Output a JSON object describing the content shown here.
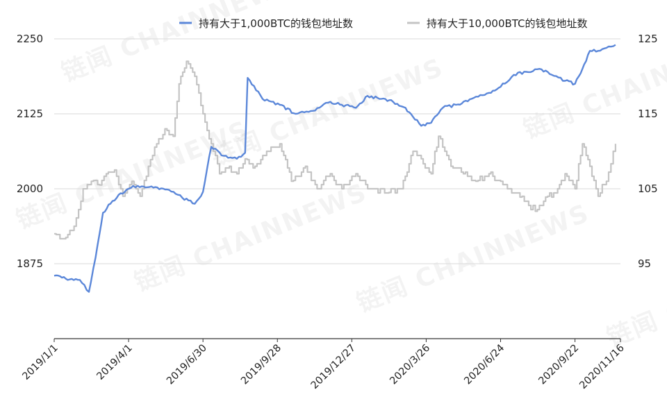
{
  "chart_data": {
    "type": "line",
    "title": "",
    "xlabel": "",
    "ylabel": "",
    "x_ticks": [
      "2019/1/1",
      "2019/4/1",
      "2019/6/30",
      "2019/9/28",
      "2019/12/27",
      "2020/3/26",
      "2020/6/24",
      "2020/9/22",
      "2020/11/16"
    ],
    "y_left": {
      "ticks": [
        1875,
        2000,
        2125,
        2250
      ],
      "ylim": [
        1750,
        2250
      ]
    },
    "y_right": {
      "ticks": [
        95,
        105,
        115,
        125
      ],
      "ylim": [
        85,
        125
      ]
    },
    "grid": true,
    "legend_position": "top",
    "series": [
      {
        "name": "持有大于1,000BTC的钱包地址数",
        "axis": "left",
        "color": "#5b87d9",
        "x": [
          "2019/1/1",
          "2019/1/15",
          "2019/2/1",
          "2019/2/12",
          "2019/2/20",
          "2019/3/1",
          "2019/3/10",
          "2019/3/20",
          "2019/4/1",
          "2019/4/12",
          "2019/5/1",
          "2019/5/20",
          "2019/6/5",
          "2019/6/20",
          "2019/6/30",
          "2019/7/10",
          "2019/7/25",
          "2019/8/10",
          "2019/8/20",
          "2019/8/23",
          "2019/9/10",
          "2019/10/1",
          "2019/10/20",
          "2019/11/10",
          "2019/12/1",
          "2019/12/15",
          "2020/1/1",
          "2020/1/15",
          "2020/2/1",
          "2020/2/15",
          "2020/3/1",
          "2020/3/10",
          "2020/3/20",
          "2020/4/1",
          "2020/4/15",
          "2020/5/1",
          "2020/5/20",
          "2020/6/10",
          "2020/6/24",
          "2020/7/10",
          "2020/7/25",
          "2020/8/10",
          "2020/8/25",
          "2020/9/10",
          "2020/9/22",
          "2020/10/1",
          "2020/10/10",
          "2020/10/20",
          "2020/10/30",
          "2020/11/10"
        ],
        "values": [
          1855,
          1850,
          1848,
          1828,
          1885,
          1960,
          1975,
          1990,
          2000,
          2005,
          2002,
          1998,
          1985,
          1975,
          1995,
          2070,
          2055,
          2050,
          2060,
          2185,
          2150,
          2140,
          2125,
          2130,
          2145,
          2140,
          2135,
          2155,
          2150,
          2145,
          2135,
          2120,
          2105,
          2110,
          2135,
          2140,
          2150,
          2160,
          2170,
          2190,
          2195,
          2200,
          2190,
          2180,
          2175,
          2200,
          2230,
          2230,
          2235,
          2240
        ]
      },
      {
        "name": "持有大于10,000BTC的钱包地址数",
        "axis": "right",
        "color": "#c4c4c4",
        "x": [
          "2019/1/1",
          "2019/1/15",
          "2019/1/25",
          "2019/2/5",
          "2019/2/15",
          "2019/2/25",
          "2019/3/5",
          "2019/3/15",
          "2019/3/25",
          "2019/4/5",
          "2019/4/15",
          "2019/4/25",
          "2019/5/5",
          "2019/5/15",
          "2019/5/25",
          "2019/6/1",
          "2019/6/10",
          "2019/6/20",
          "2019/6/30",
          "2019/7/10",
          "2019/7/20",
          "2019/8/1",
          "2019/8/10",
          "2019/8/20",
          "2019/9/1",
          "2019/9/15",
          "2019/10/1",
          "2019/10/15",
          "2019/11/1",
          "2019/11/15",
          "2019/12/1",
          "2019/12/15",
          "2020/1/1",
          "2020/1/20",
          "2020/2/10",
          "2020/2/25",
          "2020/3/10",
          "2020/3/20",
          "2020/4/1",
          "2020/4/10",
          "2020/4/25",
          "2020/5/10",
          "2020/5/25",
          "2020/6/10",
          "2020/6/24",
          "2020/7/5",
          "2020/7/20",
          "2020/8/5",
          "2020/8/20",
          "2020/9/1",
          "2020/9/10",
          "2020/9/22",
          "2020/10/1",
          "2020/10/10",
          "2020/10/20",
          "2020/10/30",
          "2020/11/10"
        ],
        "values": [
          99,
          98.5,
          100,
          105,
          106,
          105.5,
          107,
          107.5,
          104,
          106,
          104,
          108,
          111,
          113,
          112,
          119,
          122,
          120,
          115,
          111,
          107,
          108,
          107,
          109,
          108,
          110,
          111,
          106,
          108,
          105,
          107,
          105,
          107,
          105,
          104.5,
          105,
          110,
          109,
          107,
          112,
          108,
          107,
          106,
          107,
          106,
          105,
          104,
          102,
          104,
          105,
          107,
          105,
          111,
          108,
          104,
          106,
          111
        ]
      }
    ]
  },
  "watermark": "链闻 CHAINNEWS"
}
